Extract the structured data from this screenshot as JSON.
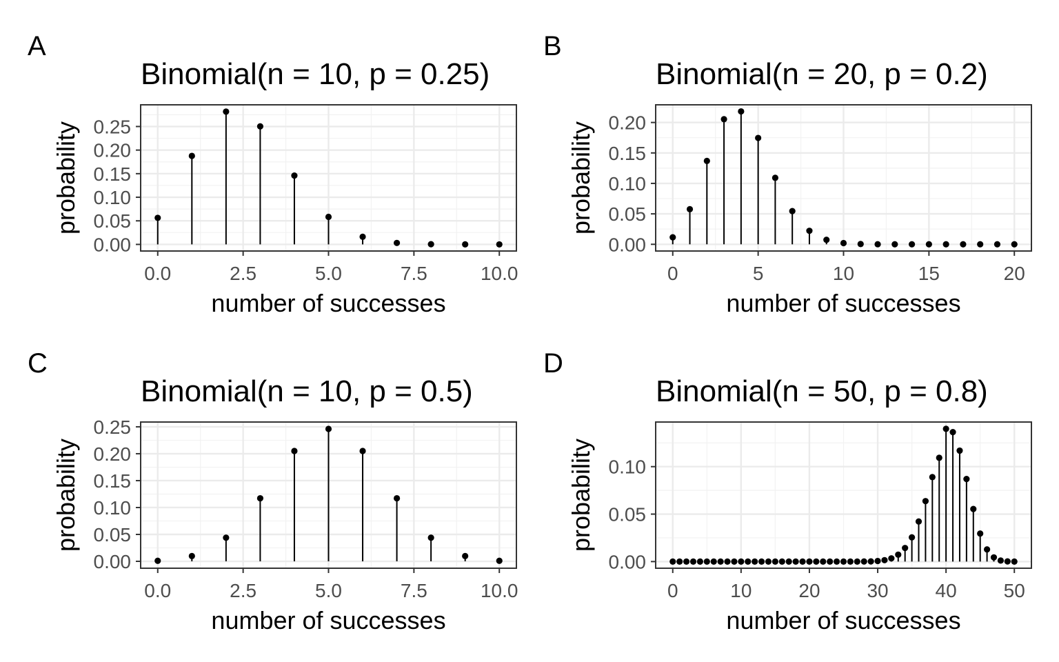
{
  "chart_data": [
    {
      "panel": "A",
      "type": "lollipop",
      "title": "Binomial(n = 10, p = 0.25)",
      "xlabel": "number of successes",
      "ylabel": "probability",
      "x": [
        0,
        1,
        2,
        3,
        4,
        5,
        6,
        7,
        8,
        9,
        10
      ],
      "y": [
        0.0563,
        0.1877,
        0.2816,
        0.2503,
        0.146,
        0.0584,
        0.0162,
        0.0031,
        0.0004,
        3e-05,
        1e-06
      ],
      "xlim": [
        -0.5,
        10.5
      ],
      "ylim": [
        -0.014,
        0.296
      ],
      "xticks": [
        0,
        2.5,
        5,
        7.5,
        10
      ],
      "xtick_labels": [
        "0.0",
        "2.5",
        "5.0",
        "7.5",
        "10.0"
      ],
      "yticks": [
        0,
        0.05,
        0.1,
        0.15,
        0.2,
        0.25
      ],
      "ytick_labels": [
        "0.00",
        "0.05",
        "0.10",
        "0.15",
        "0.20",
        "0.25"
      ]
    },
    {
      "panel": "B",
      "type": "lollipop",
      "title": "Binomial(n = 20, p = 0.2)",
      "xlabel": "number of successes",
      "ylabel": "probability",
      "x": [
        0,
        1,
        2,
        3,
        4,
        5,
        6,
        7,
        8,
        9,
        10,
        11,
        12,
        13,
        14,
        15,
        16,
        17,
        18,
        19,
        20
      ],
      "y": [
        0.0115,
        0.0576,
        0.1369,
        0.2054,
        0.2182,
        0.1746,
        0.1091,
        0.0545,
        0.0222,
        0.0074,
        0.002,
        0.0005,
        0.0001,
        2e-05,
        0,
        0,
        0,
        0,
        0,
        0,
        0
      ],
      "xlim": [
        -1,
        21
      ],
      "ylim": [
        -0.011,
        0.229
      ],
      "xticks": [
        0,
        5,
        10,
        15,
        20
      ],
      "xtick_labels": [
        "0",
        "5",
        "10",
        "15",
        "20"
      ],
      "yticks": [
        0,
        0.05,
        0.1,
        0.15,
        0.2
      ],
      "ytick_labels": [
        "0.00",
        "0.05",
        "0.10",
        "0.15",
        "0.20"
      ]
    },
    {
      "panel": "C",
      "type": "lollipop",
      "title": "Binomial(n = 10, p = 0.5)",
      "xlabel": "number of successes",
      "ylabel": "probability",
      "x": [
        0,
        1,
        2,
        3,
        4,
        5,
        6,
        7,
        8,
        9,
        10
      ],
      "y": [
        0.001,
        0.0098,
        0.0439,
        0.1172,
        0.2051,
        0.2461,
        0.2051,
        0.1172,
        0.0439,
        0.0098,
        0.001
      ],
      "xlim": [
        -0.5,
        10.5
      ],
      "ylim": [
        -0.0128,
        0.2589
      ],
      "xticks": [
        0,
        2.5,
        5,
        7.5,
        10
      ],
      "xtick_labels": [
        "0.0",
        "2.5",
        "5.0",
        "7.5",
        "10.0"
      ],
      "yticks": [
        0,
        0.05,
        0.1,
        0.15,
        0.2,
        0.25
      ],
      "ytick_labels": [
        "0.00",
        "0.05",
        "0.10",
        "0.15",
        "0.20",
        "0.25"
      ]
    },
    {
      "panel": "D",
      "type": "lollipop",
      "title": "Binomial(n = 50, p = 0.8)",
      "xlabel": "number of successes",
      "ylabel": "probability",
      "x": [
        0,
        1,
        2,
        3,
        4,
        5,
        6,
        7,
        8,
        9,
        10,
        11,
        12,
        13,
        14,
        15,
        16,
        17,
        18,
        19,
        20,
        21,
        22,
        23,
        24,
        25,
        26,
        27,
        28,
        29,
        30,
        31,
        32,
        33,
        34,
        35,
        36,
        37,
        38,
        39,
        40,
        41,
        42,
        43,
        44,
        45,
        46,
        47,
        48,
        49,
        50
      ],
      "y": [
        0,
        0,
        0,
        0,
        0,
        0,
        0,
        0,
        0,
        0,
        0,
        0,
        0,
        0,
        0,
        0,
        0,
        0,
        0,
        0,
        0,
        0,
        0,
        0,
        0,
        0,
        0,
        0,
        0.0001,
        0.0002,
        0.0006,
        0.0015,
        0.0034,
        0.0073,
        0.0143,
        0.0255,
        0.0422,
        0.0637,
        0.089,
        0.1093,
        0.1398,
        0.1364,
        0.1169,
        0.087,
        0.0554,
        0.0295,
        0.0128,
        0.0044,
        0.0011,
        0.0002,
        1e-05
      ],
      "xlim": [
        -2.5,
        52.5
      ],
      "ylim": [
        -0.007,
        0.147
      ],
      "xticks": [
        0,
        10,
        20,
        30,
        40,
        50
      ],
      "xtick_labels": [
        "0",
        "10",
        "20",
        "30",
        "40",
        "50"
      ],
      "yticks": [
        0,
        0.05,
        0.1
      ],
      "ytick_labels": [
        "0.00",
        "0.05",
        "0.10"
      ]
    }
  ]
}
